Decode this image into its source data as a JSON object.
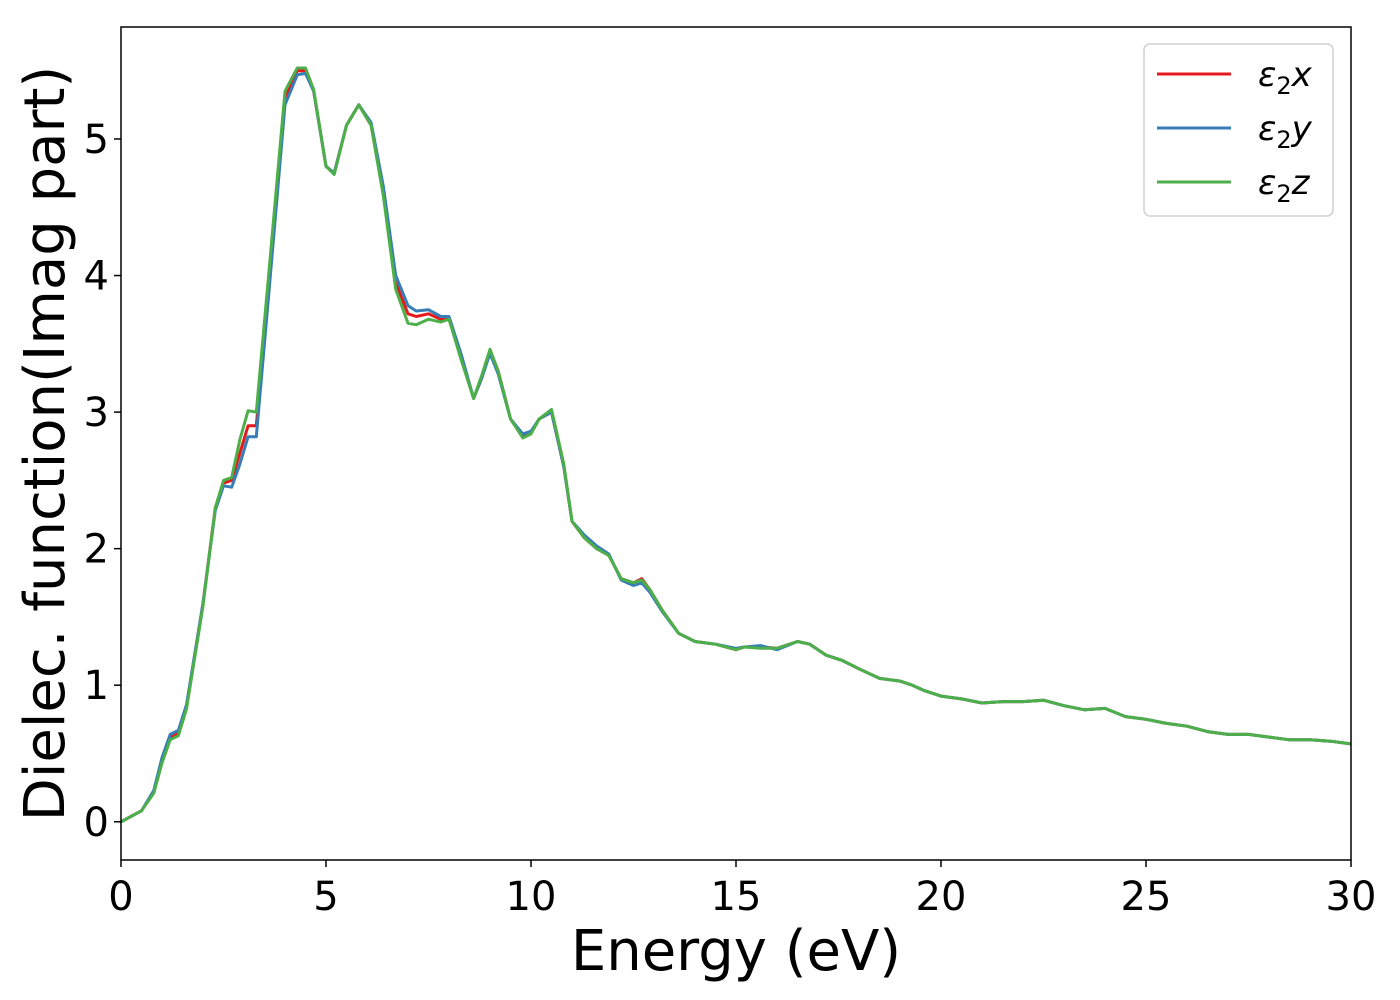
{
  "chart_data": {
    "type": "line",
    "title": "",
    "xlabel": "Energy (eV)",
    "ylabel": "Dielec. function(Imag part)",
    "xlim": [
      0,
      30
    ],
    "ylim": [
      -0.28,
      5.82
    ],
    "xticks": [
      0,
      5,
      10,
      15,
      20,
      25,
      30
    ],
    "yticks": [
      0,
      1,
      2,
      3,
      4,
      5
    ],
    "grid": false,
    "legend_position": "top-right",
    "series": [
      {
        "name": "ε₂x",
        "legend_main": "ε",
        "legend_sub": "2",
        "legend_var": "x",
        "color": "#e41a1c",
        "x": [
          0,
          0.5,
          0.8,
          1.0,
          1.2,
          1.4,
          1.6,
          2.0,
          2.3,
          2.5,
          2.7,
          2.9,
          3.1,
          3.3,
          3.6,
          4.0,
          4.3,
          4.5,
          4.7,
          5.0,
          5.2,
          5.5,
          5.8,
          6.1,
          6.4,
          6.7,
          7.0,
          7.2,
          7.5,
          7.8,
          8.0,
          8.3,
          8.6,
          8.8,
          9.0,
          9.2,
          9.5,
          9.8,
          10.0,
          10.2,
          10.5,
          10.8,
          11.0,
          11.3,
          11.6,
          11.9,
          12.2,
          12.5,
          12.7,
          12.9,
          13.2,
          13.6,
          14.0,
          14.5,
          15.0,
          15.2,
          15.6,
          16.0,
          16.5,
          16.8,
          17.2,
          17.6,
          18.0,
          18.5,
          19.0,
          19.3,
          19.6,
          20.0,
          20.5,
          21.0,
          21.5,
          22.0,
          22.5,
          23.0,
          23.5,
          24.0,
          24.5,
          25.0,
          25.5,
          26.0,
          26.5,
          27.0,
          27.5,
          28.0,
          28.5,
          29.0,
          29.5,
          30.0
        ],
        "y": [
          0,
          0.08,
          0.22,
          0.45,
          0.62,
          0.65,
          0.85,
          1.6,
          2.3,
          2.48,
          2.5,
          2.7,
          2.9,
          2.9,
          3.9,
          5.3,
          5.5,
          5.5,
          5.35,
          4.8,
          4.75,
          5.1,
          5.25,
          5.1,
          4.6,
          3.95,
          3.72,
          3.7,
          3.72,
          3.68,
          3.68,
          3.4,
          3.1,
          3.25,
          3.45,
          3.3,
          2.95,
          2.82,
          2.85,
          2.95,
          3.0,
          2.6,
          2.2,
          2.08,
          2.0,
          1.95,
          1.78,
          1.75,
          1.78,
          1.7,
          1.55,
          1.38,
          1.32,
          1.3,
          1.26,
          1.28,
          1.28,
          1.27,
          1.32,
          1.3,
          1.22,
          1.18,
          1.12,
          1.05,
          1.03,
          1.0,
          0.96,
          0.92,
          0.9,
          0.87,
          0.88,
          0.88,
          0.89,
          0.85,
          0.82,
          0.83,
          0.77,
          0.75,
          0.72,
          0.7,
          0.66,
          0.64,
          0.64,
          0.62,
          0.6,
          0.6,
          0.59,
          0.57
        ]
      },
      {
        "name": "ε₂y",
        "legend_main": "ε",
        "legend_sub": "2",
        "legend_var": "y",
        "color": "#377eb8",
        "x": [
          0,
          0.5,
          0.8,
          1.0,
          1.2,
          1.4,
          1.6,
          2.0,
          2.3,
          2.5,
          2.7,
          2.9,
          3.1,
          3.3,
          3.6,
          4.0,
          4.3,
          4.5,
          4.7,
          5.0,
          5.2,
          5.5,
          5.8,
          6.1,
          6.4,
          6.7,
          7.0,
          7.2,
          7.5,
          7.8,
          8.0,
          8.3,
          8.6,
          8.8,
          9.0,
          9.2,
          9.5,
          9.8,
          10.0,
          10.2,
          10.5,
          10.8,
          11.0,
          11.3,
          11.6,
          11.9,
          12.2,
          12.5,
          12.7,
          12.9,
          13.2,
          13.6,
          14.0,
          14.5,
          15.0,
          15.2,
          15.6,
          16.0,
          16.5,
          16.8,
          17.2,
          17.6,
          18.0,
          18.5,
          19.0,
          19.3,
          19.6,
          20.0,
          20.5,
          21.0,
          21.5,
          22.0,
          22.5,
          23.0,
          23.5,
          24.0,
          24.5,
          25.0,
          25.5,
          26.0,
          26.5,
          27.0,
          27.5,
          28.0,
          28.5,
          29.0,
          29.5,
          30.0
        ],
        "y": [
          0,
          0.08,
          0.23,
          0.47,
          0.64,
          0.67,
          0.86,
          1.6,
          2.28,
          2.46,
          2.45,
          2.62,
          2.82,
          2.82,
          3.85,
          5.25,
          5.47,
          5.48,
          5.35,
          4.8,
          4.75,
          5.1,
          5.25,
          5.12,
          4.65,
          4.0,
          3.78,
          3.74,
          3.75,
          3.7,
          3.7,
          3.42,
          3.1,
          3.25,
          3.43,
          3.28,
          2.95,
          2.84,
          2.86,
          2.95,
          3.0,
          2.6,
          2.2,
          2.1,
          2.02,
          1.96,
          1.77,
          1.73,
          1.75,
          1.68,
          1.54,
          1.38,
          1.32,
          1.3,
          1.27,
          1.28,
          1.29,
          1.26,
          1.32,
          1.3,
          1.22,
          1.18,
          1.12,
          1.05,
          1.03,
          1.0,
          0.96,
          0.92,
          0.9,
          0.87,
          0.88,
          0.88,
          0.89,
          0.85,
          0.82,
          0.83,
          0.77,
          0.75,
          0.72,
          0.7,
          0.66,
          0.64,
          0.64,
          0.62,
          0.6,
          0.6,
          0.59,
          0.57
        ]
      },
      {
        "name": "ε₂z",
        "legend_main": "ε",
        "legend_sub": "2",
        "legend_var": "z",
        "color": "#4daf4a",
        "x": [
          0,
          0.5,
          0.8,
          1.0,
          1.2,
          1.4,
          1.6,
          2.0,
          2.3,
          2.5,
          2.7,
          2.9,
          3.1,
          3.3,
          3.6,
          4.0,
          4.3,
          4.5,
          4.7,
          5.0,
          5.2,
          5.5,
          5.8,
          6.1,
          6.4,
          6.7,
          7.0,
          7.2,
          7.5,
          7.8,
          8.0,
          8.3,
          8.6,
          8.8,
          9.0,
          9.2,
          9.5,
          9.8,
          10.0,
          10.2,
          10.5,
          10.8,
          11.0,
          11.3,
          11.6,
          11.9,
          12.2,
          12.5,
          12.7,
          12.9,
          13.2,
          13.6,
          14.0,
          14.5,
          15.0,
          15.2,
          15.6,
          16.0,
          16.5,
          16.8,
          17.2,
          17.6,
          18.0,
          18.5,
          19.0,
          19.3,
          19.6,
          20.0,
          20.5,
          21.0,
          21.5,
          22.0,
          22.5,
          23.0,
          23.5,
          24.0,
          24.5,
          25.0,
          25.5,
          26.0,
          26.5,
          27.0,
          27.5,
          28.0,
          28.5,
          29.0,
          29.5,
          30.0
        ],
        "y": [
          0,
          0.08,
          0.21,
          0.43,
          0.6,
          0.63,
          0.83,
          1.58,
          2.3,
          2.5,
          2.52,
          2.8,
          3.01,
          3.0,
          4.0,
          5.35,
          5.52,
          5.52,
          5.36,
          4.8,
          4.74,
          5.1,
          5.25,
          5.1,
          4.58,
          3.9,
          3.65,
          3.64,
          3.68,
          3.66,
          3.68,
          3.38,
          3.1,
          3.27,
          3.46,
          3.3,
          2.95,
          2.81,
          2.84,
          2.95,
          3.02,
          2.62,
          2.2,
          2.08,
          2.0,
          1.95,
          1.78,
          1.75,
          1.77,
          1.7,
          1.55,
          1.38,
          1.32,
          1.3,
          1.26,
          1.28,
          1.27,
          1.27,
          1.32,
          1.3,
          1.22,
          1.18,
          1.12,
          1.05,
          1.03,
          1.0,
          0.96,
          0.92,
          0.9,
          0.87,
          0.88,
          0.88,
          0.89,
          0.85,
          0.82,
          0.83,
          0.77,
          0.75,
          0.72,
          0.7,
          0.66,
          0.64,
          0.64,
          0.62,
          0.6,
          0.6,
          0.59,
          0.57
        ]
      }
    ]
  }
}
